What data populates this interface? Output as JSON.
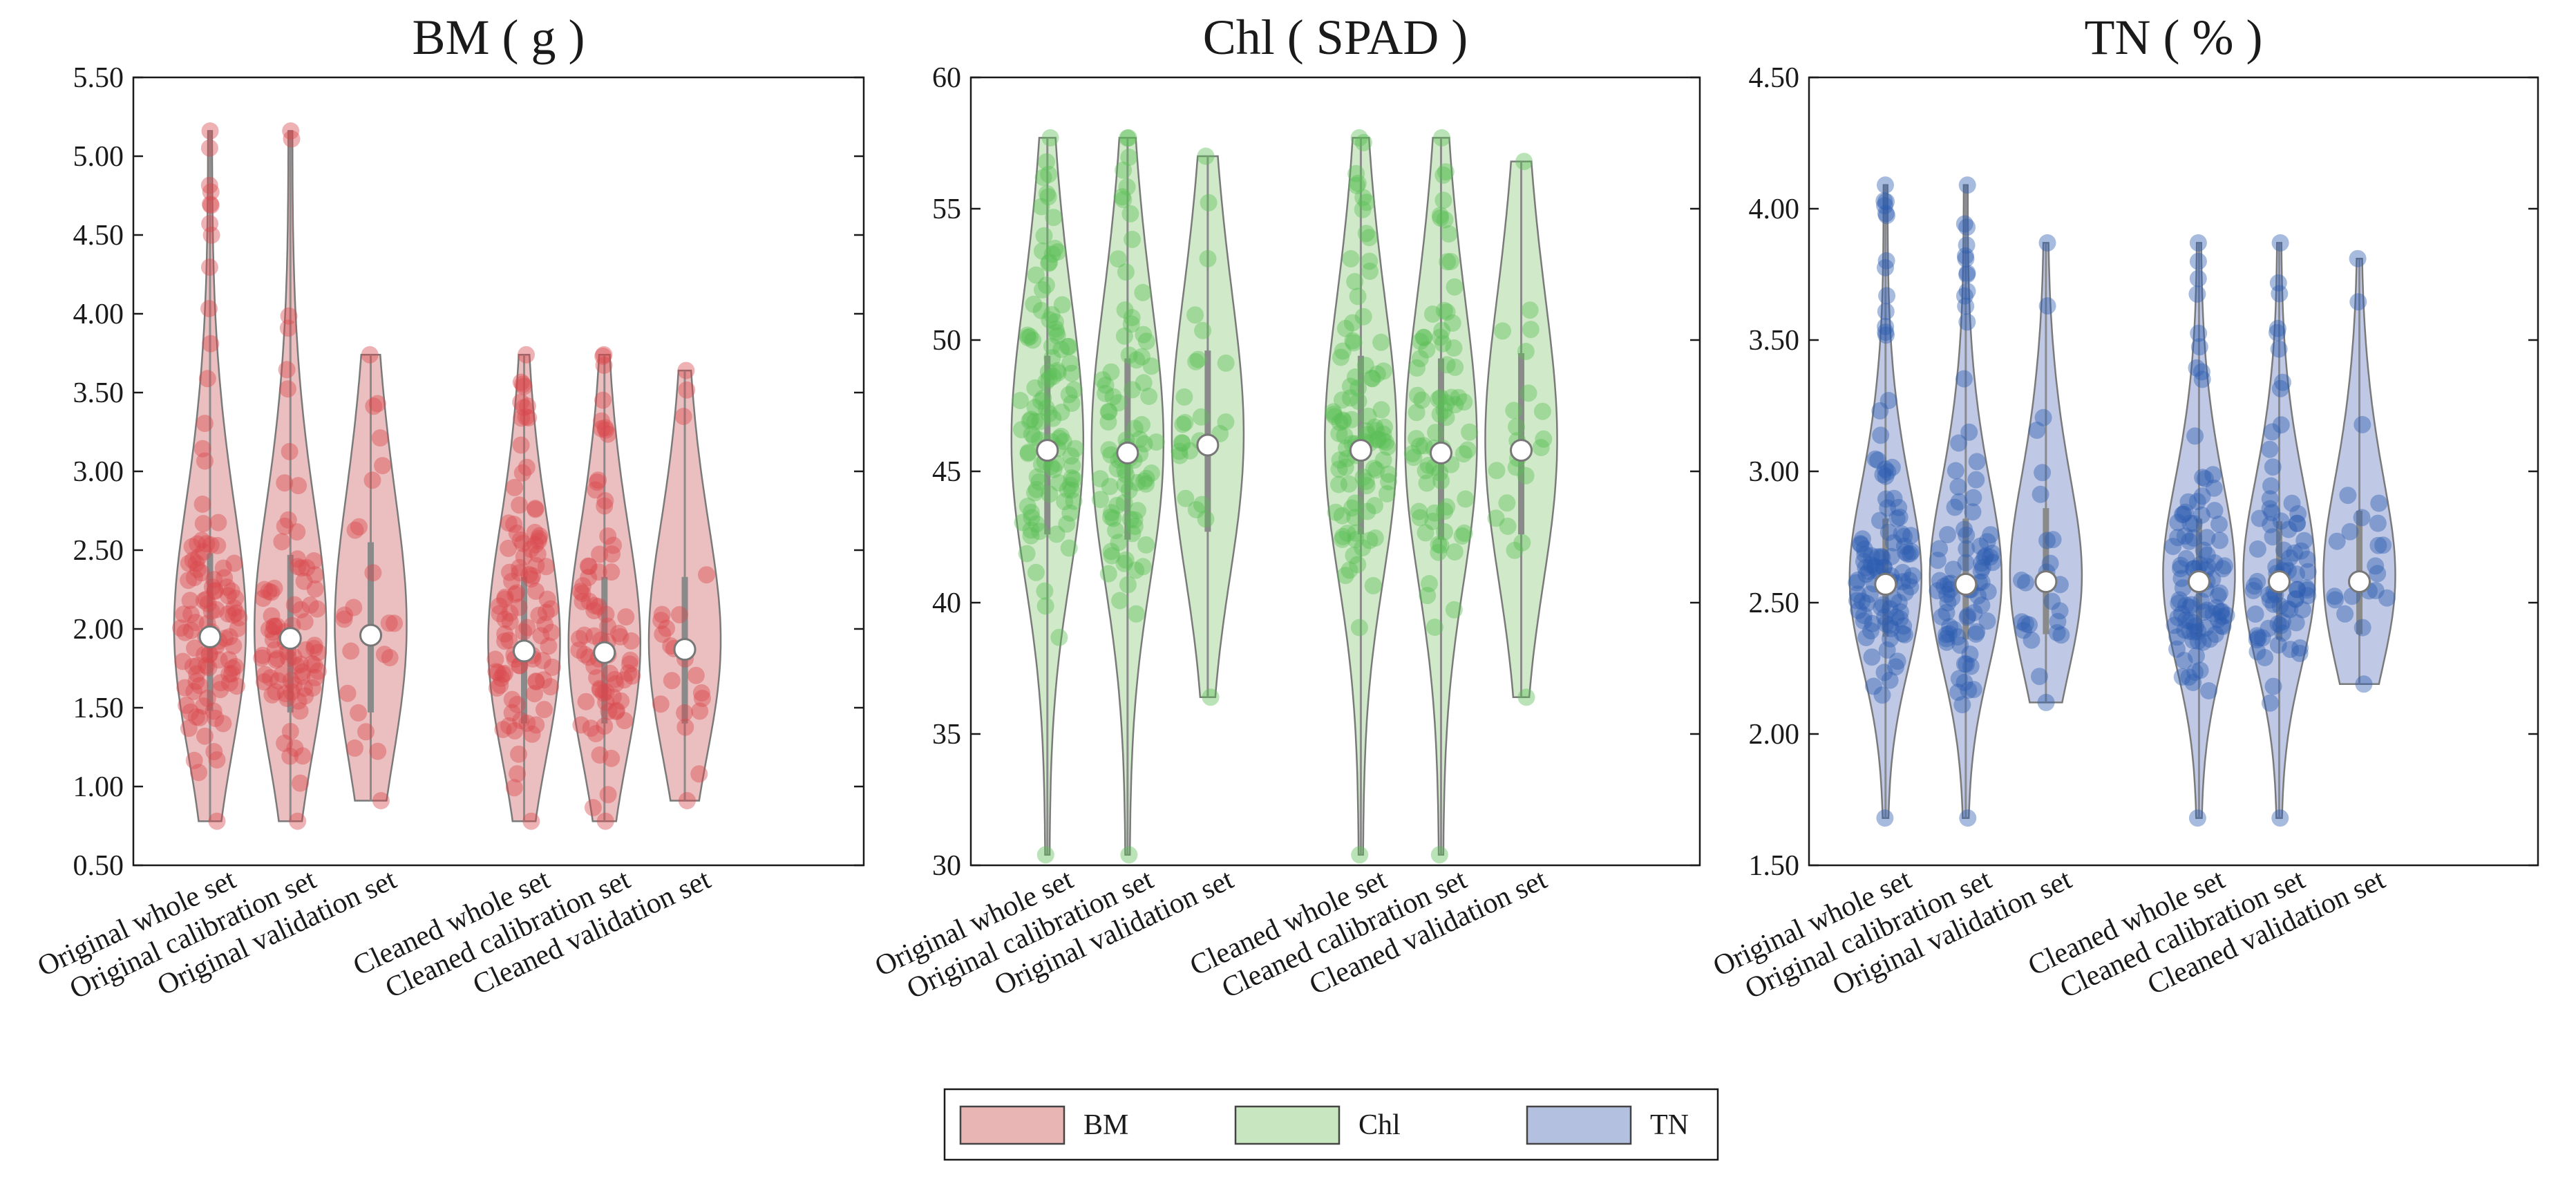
{
  "figure": {
    "legend_position": "bottom-center"
  },
  "legend": [
    {
      "label": "BM",
      "color": "#E8B4B4"
    },
    {
      "label": "Chl",
      "color": "#C8E6C0"
    },
    {
      "label": "TN",
      "color": "#B4C0E0"
    }
  ],
  "chart_data": [
    {
      "type": "violin",
      "title": "BM ( g )",
      "ylim": [
        0.5,
        5.5
      ],
      "yticks": [
        "0.50",
        "1.00",
        "1.50",
        "2.00",
        "2.50",
        "3.00",
        "3.50",
        "4.00",
        "4.50",
        "5.00",
        "5.50"
      ],
      "categories": [
        "Original whole set",
        "Original calibration set",
        "Original validation set",
        "Cleaned whole set",
        "Cleaned calibration set",
        "Cleaned validation set"
      ],
      "fill_color": "#E8B4B4",
      "point_color": "#D9474D",
      "violins": [
        {
          "category": "Original whole set",
          "min": 0.78,
          "max": 5.16,
          "median": 1.95,
          "q1": 1.48,
          "q3": 2.48,
          "n": 110,
          "seed": 11
        },
        {
          "category": "Original calibration set",
          "min": 0.78,
          "max": 5.16,
          "median": 1.94,
          "q1": 1.47,
          "q3": 2.47,
          "n": 85,
          "seed": 12
        },
        {
          "category": "Original validation set",
          "min": 0.91,
          "max": 3.74,
          "median": 1.96,
          "q1": 1.47,
          "q3": 2.55,
          "n": 25,
          "seed": 13
        },
        {
          "category": "Cleaned whole set",
          "min": 0.78,
          "max": 3.74,
          "median": 1.86,
          "q1": 1.4,
          "q3": 2.33,
          "n": 100,
          "seed": 14
        },
        {
          "category": "Cleaned calibration set",
          "min": 0.78,
          "max": 3.74,
          "median": 1.85,
          "q1": 1.4,
          "q3": 2.33,
          "n": 78,
          "seed": 15
        },
        {
          "category": "Cleaned validation set",
          "min": 0.91,
          "max": 3.64,
          "median": 1.87,
          "q1": 1.4,
          "q3": 2.33,
          "n": 22,
          "seed": 16
        }
      ]
    },
    {
      "type": "violin",
      "title": "Chl ( SPAD )",
      "ylim": [
        30,
        60
      ],
      "yticks": [
        "30",
        "35",
        "40",
        "45",
        "50",
        "55",
        "60"
      ],
      "categories": [
        "Original whole set",
        "Original calibration set",
        "Original validation set",
        "Cleaned whole set",
        "Cleaned calibration set",
        "Cleaned validation set"
      ],
      "fill_color": "#C8E6C0",
      "point_color": "#5BBE55",
      "violins": [
        {
          "category": "Original whole set",
          "min": 30.4,
          "max": 57.7,
          "median": 45.8,
          "q1": 42.6,
          "q3": 49.4,
          "n": 110,
          "seed": 21
        },
        {
          "category": "Original calibration set",
          "min": 30.4,
          "max": 57.7,
          "median": 45.7,
          "q1": 42.4,
          "q3": 49.3,
          "n": 85,
          "seed": 22
        },
        {
          "category": "Original validation set",
          "min": 36.4,
          "max": 57.0,
          "median": 46.0,
          "q1": 42.7,
          "q3": 49.6,
          "n": 25,
          "seed": 23
        },
        {
          "category": "Cleaned whole set",
          "min": 30.4,
          "max": 57.7,
          "median": 45.8,
          "q1": 42.6,
          "q3": 49.4,
          "n": 100,
          "seed": 24
        },
        {
          "category": "Cleaned calibration set",
          "min": 30.4,
          "max": 57.7,
          "median": 45.7,
          "q1": 42.4,
          "q3": 49.3,
          "n": 78,
          "seed": 25
        },
        {
          "category": "Cleaned validation set",
          "min": 36.4,
          "max": 56.8,
          "median": 45.8,
          "q1": 42.6,
          "q3": 49.5,
          "n": 22,
          "seed": 26
        }
      ]
    },
    {
      "type": "violin",
      "title": "TN ( % )",
      "ylim": [
        1.5,
        4.5
      ],
      "yticks": [
        "1.50",
        "2.00",
        "2.50",
        "3.00",
        "3.50",
        "4.00",
        "4.50"
      ],
      "categories": [
        "Original whole set",
        "Original calibration set",
        "Original validation set",
        "Cleaned whole set",
        "Cleaned calibration set",
        "Cleaned validation set"
      ],
      "fill_color": "#B4C0E0",
      "point_color": "#2E5DB0",
      "violins": [
        {
          "category": "Original whole set",
          "min": 1.68,
          "max": 4.09,
          "median": 2.57,
          "q1": 2.37,
          "q3": 2.82,
          "n": 110,
          "seed": 31
        },
        {
          "category": "Original calibration set",
          "min": 1.68,
          "max": 4.09,
          "median": 2.57,
          "q1": 2.36,
          "q3": 2.82,
          "n": 85,
          "seed": 32
        },
        {
          "category": "Original validation set",
          "min": 2.12,
          "max": 3.87,
          "median": 2.58,
          "q1": 2.38,
          "q3": 2.86,
          "n": 25,
          "seed": 33
        },
        {
          "category": "Cleaned whole set",
          "min": 1.68,
          "max": 3.87,
          "median": 2.58,
          "q1": 2.37,
          "q3": 2.82,
          "n": 100,
          "seed": 34
        },
        {
          "category": "Cleaned calibration set",
          "min": 1.68,
          "max": 3.87,
          "median": 2.58,
          "q1": 2.36,
          "q3": 2.81,
          "n": 78,
          "seed": 35
        },
        {
          "category": "Cleaned validation set",
          "min": 2.19,
          "max": 3.81,
          "median": 2.58,
          "q1": 2.38,
          "q3": 2.85,
          "n": 22,
          "seed": 36
        }
      ]
    }
  ]
}
